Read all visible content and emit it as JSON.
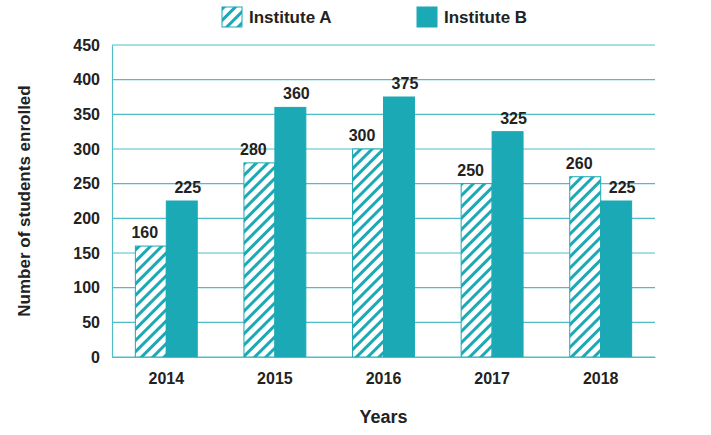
{
  "chart_data": {
    "type": "bar",
    "x_label": "Years",
    "y_label": "Number of students enrolled",
    "categories": [
      "2014",
      "2015",
      "2016",
      "2017",
      "2018"
    ],
    "series": [
      {
        "name": "Institute A",
        "color": "#1ba9b5",
        "marker": "hatch",
        "values": [
          160,
          280,
          300,
          250,
          260
        ]
      },
      {
        "name": "Institute B",
        "color": "#1ba9b5",
        "marker": "solid",
        "values": [
          225,
          360,
          375,
          325,
          225
        ]
      }
    ],
    "ylim": [
      0,
      450
    ],
    "yticks": [
      0,
      50,
      100,
      150,
      200,
      250,
      300,
      350,
      400,
      450
    ],
    "grid": true,
    "data_labels": true,
    "legend": "top"
  }
}
